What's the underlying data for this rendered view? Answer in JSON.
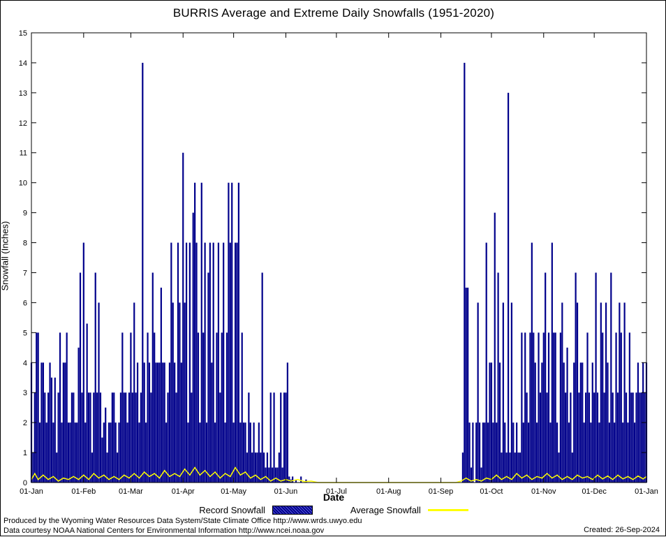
{
  "page": {
    "footer_line1": "Produced by the Wyoming Water Resources Data System/State Climate Office http://www.wrds.uwyo.edu",
    "footer_line2": "Data courtesy NOAA National Centers for Environmental Information http://www.ncei.noaa.gov",
    "created": "Created: 26-Sep-2024"
  },
  "chart_data": {
    "type": "bar",
    "title": "BURRIS Average and Extreme Daily Snowfalls (1951-2020)",
    "xlabel": "Date",
    "ylabel": "Snowfall (Inches)",
    "ylim": [
      0,
      15
    ],
    "grid": false,
    "legend_position": "bottom-center",
    "y_ticks": [
      0,
      1,
      2,
      3,
      4,
      5,
      6,
      7,
      8,
      9,
      10,
      11,
      12,
      13,
      14,
      15
    ],
    "x_ticks": [
      {
        "day": 0,
        "label": "01-Jan"
      },
      {
        "day": 31,
        "label": "01-Feb"
      },
      {
        "day": 59,
        "label": "01-Mar"
      },
      {
        "day": 90,
        "label": "01-Apr"
      },
      {
        "day": 120,
        "label": "01-May"
      },
      {
        "day": 151,
        "label": "01-Jun"
      },
      {
        "day": 181,
        "label": "01-Jul"
      },
      {
        "day": 212,
        "label": "01-Aug"
      },
      {
        "day": 243,
        "label": "01-Sep"
      },
      {
        "day": 273,
        "label": "01-Oct"
      },
      {
        "day": 304,
        "label": "01-Nov"
      },
      {
        "day": 334,
        "label": "01-Dec"
      },
      {
        "day": 365,
        "label": "01-Jan"
      }
    ],
    "legend": [
      {
        "label": "Record Snowfall",
        "color": "#00008B",
        "style": "bar-hatched"
      },
      {
        "label": "Average Snowfall",
        "color": "#FFFF00",
        "style": "line"
      }
    ],
    "series": [
      {
        "name": "Record Snowfall",
        "type": "bar",
        "color": "#00008B",
        "x_unit": "day-of-year (0 = 01-Jan)",
        "values": [
          4,
          1,
          3,
          5,
          5,
          2,
          4,
          4,
          3,
          2,
          3,
          4,
          3.5,
          2,
          3.5,
          1,
          3,
          5,
          2,
          4,
          4,
          5,
          2,
          2,
          3,
          3,
          2,
          2,
          4.5,
          7,
          3,
          8,
          2,
          5.3,
          3,
          3,
          1,
          3,
          7,
          3,
          6,
          3,
          1.5,
          2,
          2.5,
          1,
          2,
          2,
          3,
          3,
          2,
          1,
          2,
          3,
          5,
          3,
          3,
          2,
          3,
          5,
          3,
          6,
          3,
          4,
          2,
          3,
          14,
          4,
          2,
          5,
          4,
          3,
          7,
          5,
          4,
          4,
          4,
          6.5,
          4,
          4,
          2,
          3,
          4,
          8,
          6,
          4,
          3,
          8,
          6,
          4,
          11,
          6,
          8,
          2,
          8,
          3,
          9,
          10,
          8,
          5,
          2,
          10,
          5,
          8,
          2,
          7,
          8,
          4,
          8,
          2,
          5,
          8,
          3,
          5,
          8,
          2,
          5,
          10,
          8,
          10,
          2,
          8,
          8,
          10,
          2,
          5,
          2,
          2,
          1,
          3,
          2,
          1,
          2,
          1,
          1,
          2,
          1,
          7,
          1,
          0.5,
          1,
          0.5,
          3,
          0.5,
          3,
          0.5,
          0.5,
          1,
          3,
          0.5,
          3,
          3,
          4,
          0.2,
          0.1,
          0.2,
          0,
          0.1,
          0,
          0,
          0.2,
          0,
          0,
          0.1,
          0,
          0,
          0,
          0,
          0,
          0,
          0,
          0,
          0,
          0,
          0,
          0,
          0,
          0,
          0,
          0,
          0,
          0,
          0,
          0,
          0,
          0,
          0,
          0,
          0,
          0,
          0,
          0,
          0,
          0,
          0,
          0,
          0,
          0,
          0,
          0,
          0,
          0,
          0,
          0,
          0,
          0,
          0,
          0,
          0,
          0,
          0,
          0,
          0,
          0,
          0,
          0,
          0,
          0,
          0,
          0,
          0,
          0,
          0,
          0,
          0,
          0,
          0,
          0,
          0,
          0,
          0,
          0,
          0,
          0,
          0,
          0,
          0,
          0,
          0,
          0,
          0,
          0,
          0,
          0,
          0,
          0,
          0,
          0,
          0,
          0,
          0,
          0,
          0,
          0,
          0,
          0,
          1,
          14,
          6.5,
          6.5,
          2,
          0.5,
          2,
          0,
          2,
          6,
          2,
          0.5,
          2,
          2,
          8,
          2,
          4,
          4,
          2,
          9,
          2,
          7,
          4,
          1,
          6,
          2,
          1,
          13,
          1,
          6,
          2,
          1,
          2,
          1,
          1,
          5,
          2,
          5,
          3,
          2,
          5,
          8,
          5,
          4,
          2,
          5,
          3,
          4,
          5,
          7,
          3,
          5,
          2,
          8,
          5,
          5,
          2,
          1,
          5,
          6,
          4,
          3,
          4.5,
          2,
          3,
          1,
          4,
          7,
          6,
          3,
          4,
          4,
          2,
          3,
          5,
          3,
          2,
          4,
          3,
          7,
          3,
          2,
          6,
          5,
          3,
          6,
          4,
          2,
          7,
          3,
          2,
          5,
          3,
          6,
          5,
          2,
          6,
          3,
          2,
          5,
          3,
          3,
          2,
          3,
          4,
          3,
          3,
          4,
          3,
          4
        ]
      },
      {
        "name": "Average Snowfall",
        "type": "line",
        "color": "#FFFF00",
        "points": [
          [
            0,
            0.1
          ],
          [
            2,
            0.3
          ],
          [
            4,
            0.1
          ],
          [
            7,
            0.25
          ],
          [
            10,
            0.1
          ],
          [
            13,
            0.2
          ],
          [
            16,
            0.05
          ],
          [
            19,
            0.15
          ],
          [
            22,
            0.1
          ],
          [
            25,
            0.2
          ],
          [
            28,
            0.1
          ],
          [
            31,
            0.25
          ],
          [
            34,
            0.1
          ],
          [
            37,
            0.3
          ],
          [
            40,
            0.15
          ],
          [
            43,
            0.25
          ],
          [
            46,
            0.1
          ],
          [
            49,
            0.2
          ],
          [
            52,
            0.1
          ],
          [
            55,
            0.25
          ],
          [
            58,
            0.15
          ],
          [
            61,
            0.3
          ],
          [
            64,
            0.15
          ],
          [
            67,
            0.35
          ],
          [
            70,
            0.2
          ],
          [
            73,
            0.3
          ],
          [
            76,
            0.15
          ],
          [
            79,
            0.4
          ],
          [
            82,
            0.2
          ],
          [
            85,
            0.3
          ],
          [
            88,
            0.2
          ],
          [
            91,
            0.45
          ],
          [
            94,
            0.25
          ],
          [
            97,
            0.5
          ],
          [
            100,
            0.25
          ],
          [
            103,
            0.4
          ],
          [
            106,
            0.2
          ],
          [
            109,
            0.35
          ],
          [
            112,
            0.15
          ],
          [
            115,
            0.3
          ],
          [
            118,
            0.2
          ],
          [
            121,
            0.5
          ],
          [
            124,
            0.25
          ],
          [
            127,
            0.35
          ],
          [
            130,
            0.15
          ],
          [
            133,
            0.25
          ],
          [
            136,
            0.1
          ],
          [
            139,
            0.2
          ],
          [
            142,
            0.05
          ],
          [
            145,
            0.15
          ],
          [
            148,
            0.05
          ],
          [
            151,
            0.1
          ],
          [
            154,
            0.05
          ],
          [
            158,
            0.1
          ],
          [
            162,
            0.03
          ],
          [
            166,
            0.05
          ],
          [
            170,
            0
          ],
          [
            180,
            0
          ],
          [
            200,
            0
          ],
          [
            220,
            0
          ],
          [
            240,
            0
          ],
          [
            252,
            0
          ],
          [
            255,
            0.05
          ],
          [
            258,
            0.15
          ],
          [
            261,
            0.05
          ],
          [
            264,
            0.1
          ],
          [
            267,
            0.05
          ],
          [
            270,
            0.15
          ],
          [
            273,
            0.1
          ],
          [
            276,
            0.25
          ],
          [
            279,
            0.1
          ],
          [
            282,
            0.2
          ],
          [
            285,
            0.1
          ],
          [
            288,
            0.3
          ],
          [
            291,
            0.15
          ],
          [
            294,
            0.25
          ],
          [
            297,
            0.1
          ],
          [
            300,
            0.2
          ],
          [
            303,
            0.15
          ],
          [
            306,
            0.3
          ],
          [
            309,
            0.15
          ],
          [
            312,
            0.25
          ],
          [
            315,
            0.1
          ],
          [
            318,
            0.2
          ],
          [
            321,
            0.1
          ],
          [
            324,
            0.25
          ],
          [
            327,
            0.15
          ],
          [
            330,
            0.2
          ],
          [
            333,
            0.1
          ],
          [
            336,
            0.25
          ],
          [
            339,
            0.12
          ],
          [
            342,
            0.22
          ],
          [
            345,
            0.1
          ],
          [
            348,
            0.25
          ],
          [
            351,
            0.12
          ],
          [
            354,
            0.2
          ],
          [
            357,
            0.1
          ],
          [
            360,
            0.22
          ],
          [
            363,
            0.12
          ],
          [
            365,
            0.2
          ]
        ]
      }
    ]
  }
}
